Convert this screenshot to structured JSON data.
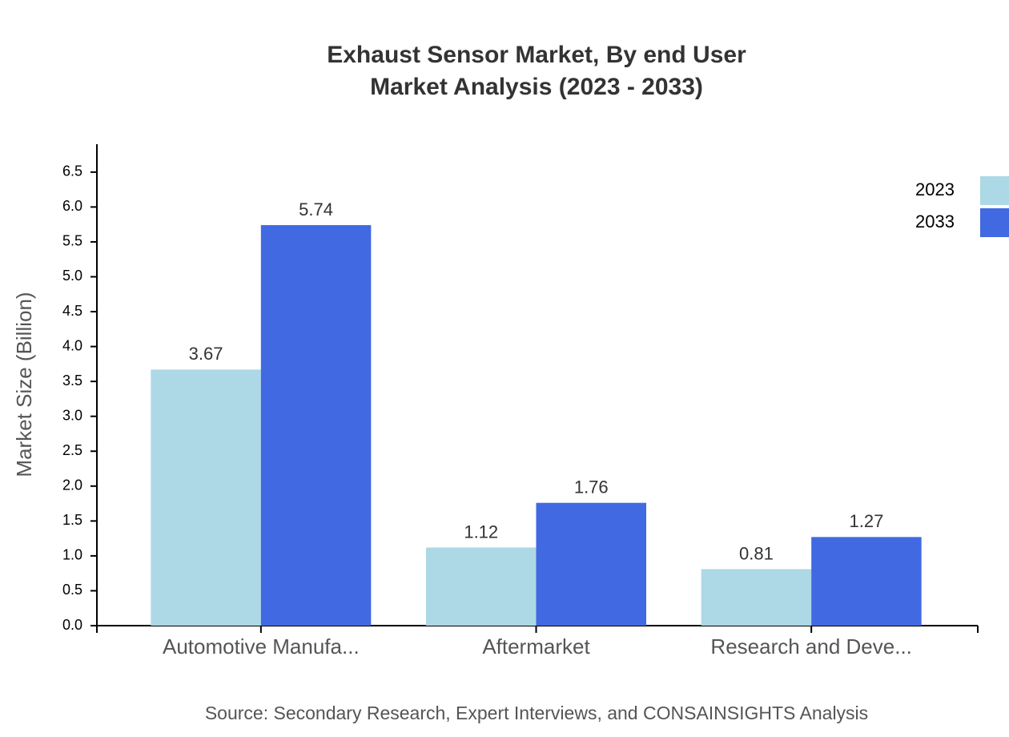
{
  "chart_data": {
    "type": "bar",
    "title": "Exhaust Sensor Market, By end User",
    "subtitle": "Market Analysis (2023 - 2033)",
    "y_label": "Market Size (Billion)",
    "source": "Source: Secondary Research, Expert Interviews, and CONSAINSIGHTS Analysis",
    "categories": [
      "Automotive Manufa...",
      "Aftermarket",
      "Research and Deve..."
    ],
    "series": [
      {
        "name": "2023",
        "color": "#add8e6",
        "values": [
          3.67,
          1.12,
          0.81
        ]
      },
      {
        "name": "2033",
        "color": "#4169e1",
        "values": [
          5.74,
          1.76,
          1.27
        ]
      }
    ],
    "ylim": [
      0,
      6.9
    ],
    "yticks": [
      {
        "value": 0,
        "label": "0.0"
      },
      0.5,
      {
        "value": 1,
        "label": "1.0"
      },
      1.5,
      {
        "value": 2,
        "label": "2.0"
      },
      2.5,
      {
        "value": 3,
        "label": "3.0"
      },
      3.5,
      {
        "value": 4,
        "label": "4.0"
      },
      4.5,
      {
        "value": 5,
        "label": "5.0"
      },
      5.5,
      {
        "value": 6,
        "label": "6.0"
      },
      6.5
    ],
    "grid": false,
    "legend": "top-right"
  }
}
